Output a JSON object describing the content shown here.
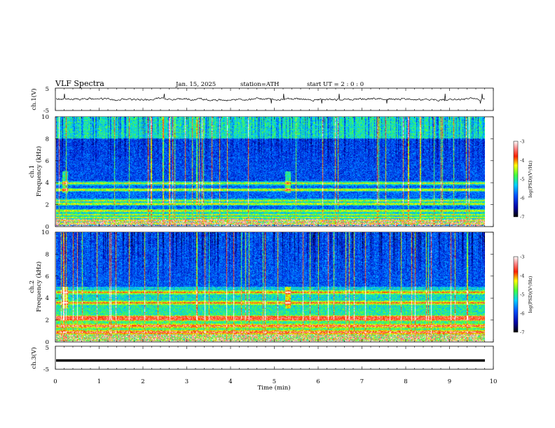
{
  "header": {
    "title": "VLF  Spectra",
    "date": "Jan. 15, 2025",
    "station": "station=ATH",
    "start_ut": "start  UT  =    2  : 0   : 0"
  },
  "chart_data": [
    {
      "type": "line",
      "name": "ch1-waveform",
      "ylabel": "ch.1(V)",
      "yticks": [
        "5",
        "-5"
      ],
      "ylim": [
        -5,
        5
      ],
      "xlim": [
        0,
        10
      ]
    },
    {
      "type": "heatmap",
      "name": "ch1-spectrogram",
      "ylabel": "ch.1\nFrequency  (kHz)",
      "ylabel_lines": [
        "ch.1",
        "Frequency  (kHz)"
      ],
      "yticks": [
        "0",
        "2",
        "4",
        "6",
        "8",
        "10"
      ],
      "ylim_khz": [
        0,
        10
      ],
      "xlim_min": [
        0,
        9.8
      ],
      "colorbar": {
        "label": "log(PSD)(V²/Hz)",
        "ticks": [
          "-3",
          "-4",
          "-5",
          "-6",
          "-7"
        ],
        "range": [
          -7,
          -3
        ]
      },
      "bright_lines_khz": [
        0.2,
        0.45,
        0.75,
        1.0,
        1.35,
        2.0,
        2.3,
        3.3,
        3.9
      ],
      "bursts_min": [
        0.2,
        5.3
      ]
    },
    {
      "type": "heatmap",
      "name": "ch2-spectrogram",
      "ylabel_lines": [
        "ch.2",
        "Frequency  (kHz)"
      ],
      "yticks": [
        "0",
        "2",
        "4",
        "6",
        "8",
        "10"
      ],
      "ylim_khz": [
        0,
        10
      ],
      "xlim_min": [
        0,
        9.8
      ],
      "colorbar": {
        "label": "log(PSD)(V²/Hz)",
        "ticks": [
          "-3",
          "-4",
          "-5",
          "-6",
          "-7"
        ],
        "range": [
          -7,
          -3
        ]
      },
      "bright_lines_khz": [
        0.8,
        1.4,
        2.0,
        2.2,
        3.5,
        4.5
      ],
      "bursts_min": [
        0.2,
        5.3
      ]
    },
    {
      "type": "line",
      "name": "ch3-waveform",
      "ylabel": "ch.3(V)",
      "yticks": [
        "5",
        "-5"
      ],
      "ylim": [
        -5,
        5
      ],
      "values_constant": -1.2
    }
  ],
  "xaxis": {
    "label": "Time  (min)",
    "ticks": [
      "0",
      "1",
      "2",
      "3",
      "4",
      "5",
      "6",
      "7",
      "8",
      "9",
      "10"
    ],
    "range": [
      0,
      10
    ]
  }
}
